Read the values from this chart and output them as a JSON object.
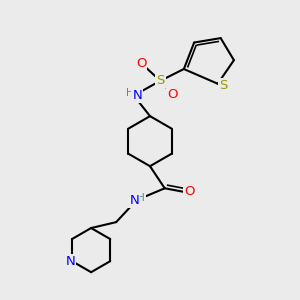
{
  "bg_color": "#ebebeb",
  "bond_color": "#000000",
  "bond_width": 1.5,
  "atom_colors": {
    "N": "#0000ff",
    "O": "#ff0000",
    "S": "#999900",
    "H": "#4a9090",
    "C": "#000000"
  },
  "font_size": 8.5,
  "fig_size": [
    3.0,
    3.0
  ],
  "dpi": 100
}
